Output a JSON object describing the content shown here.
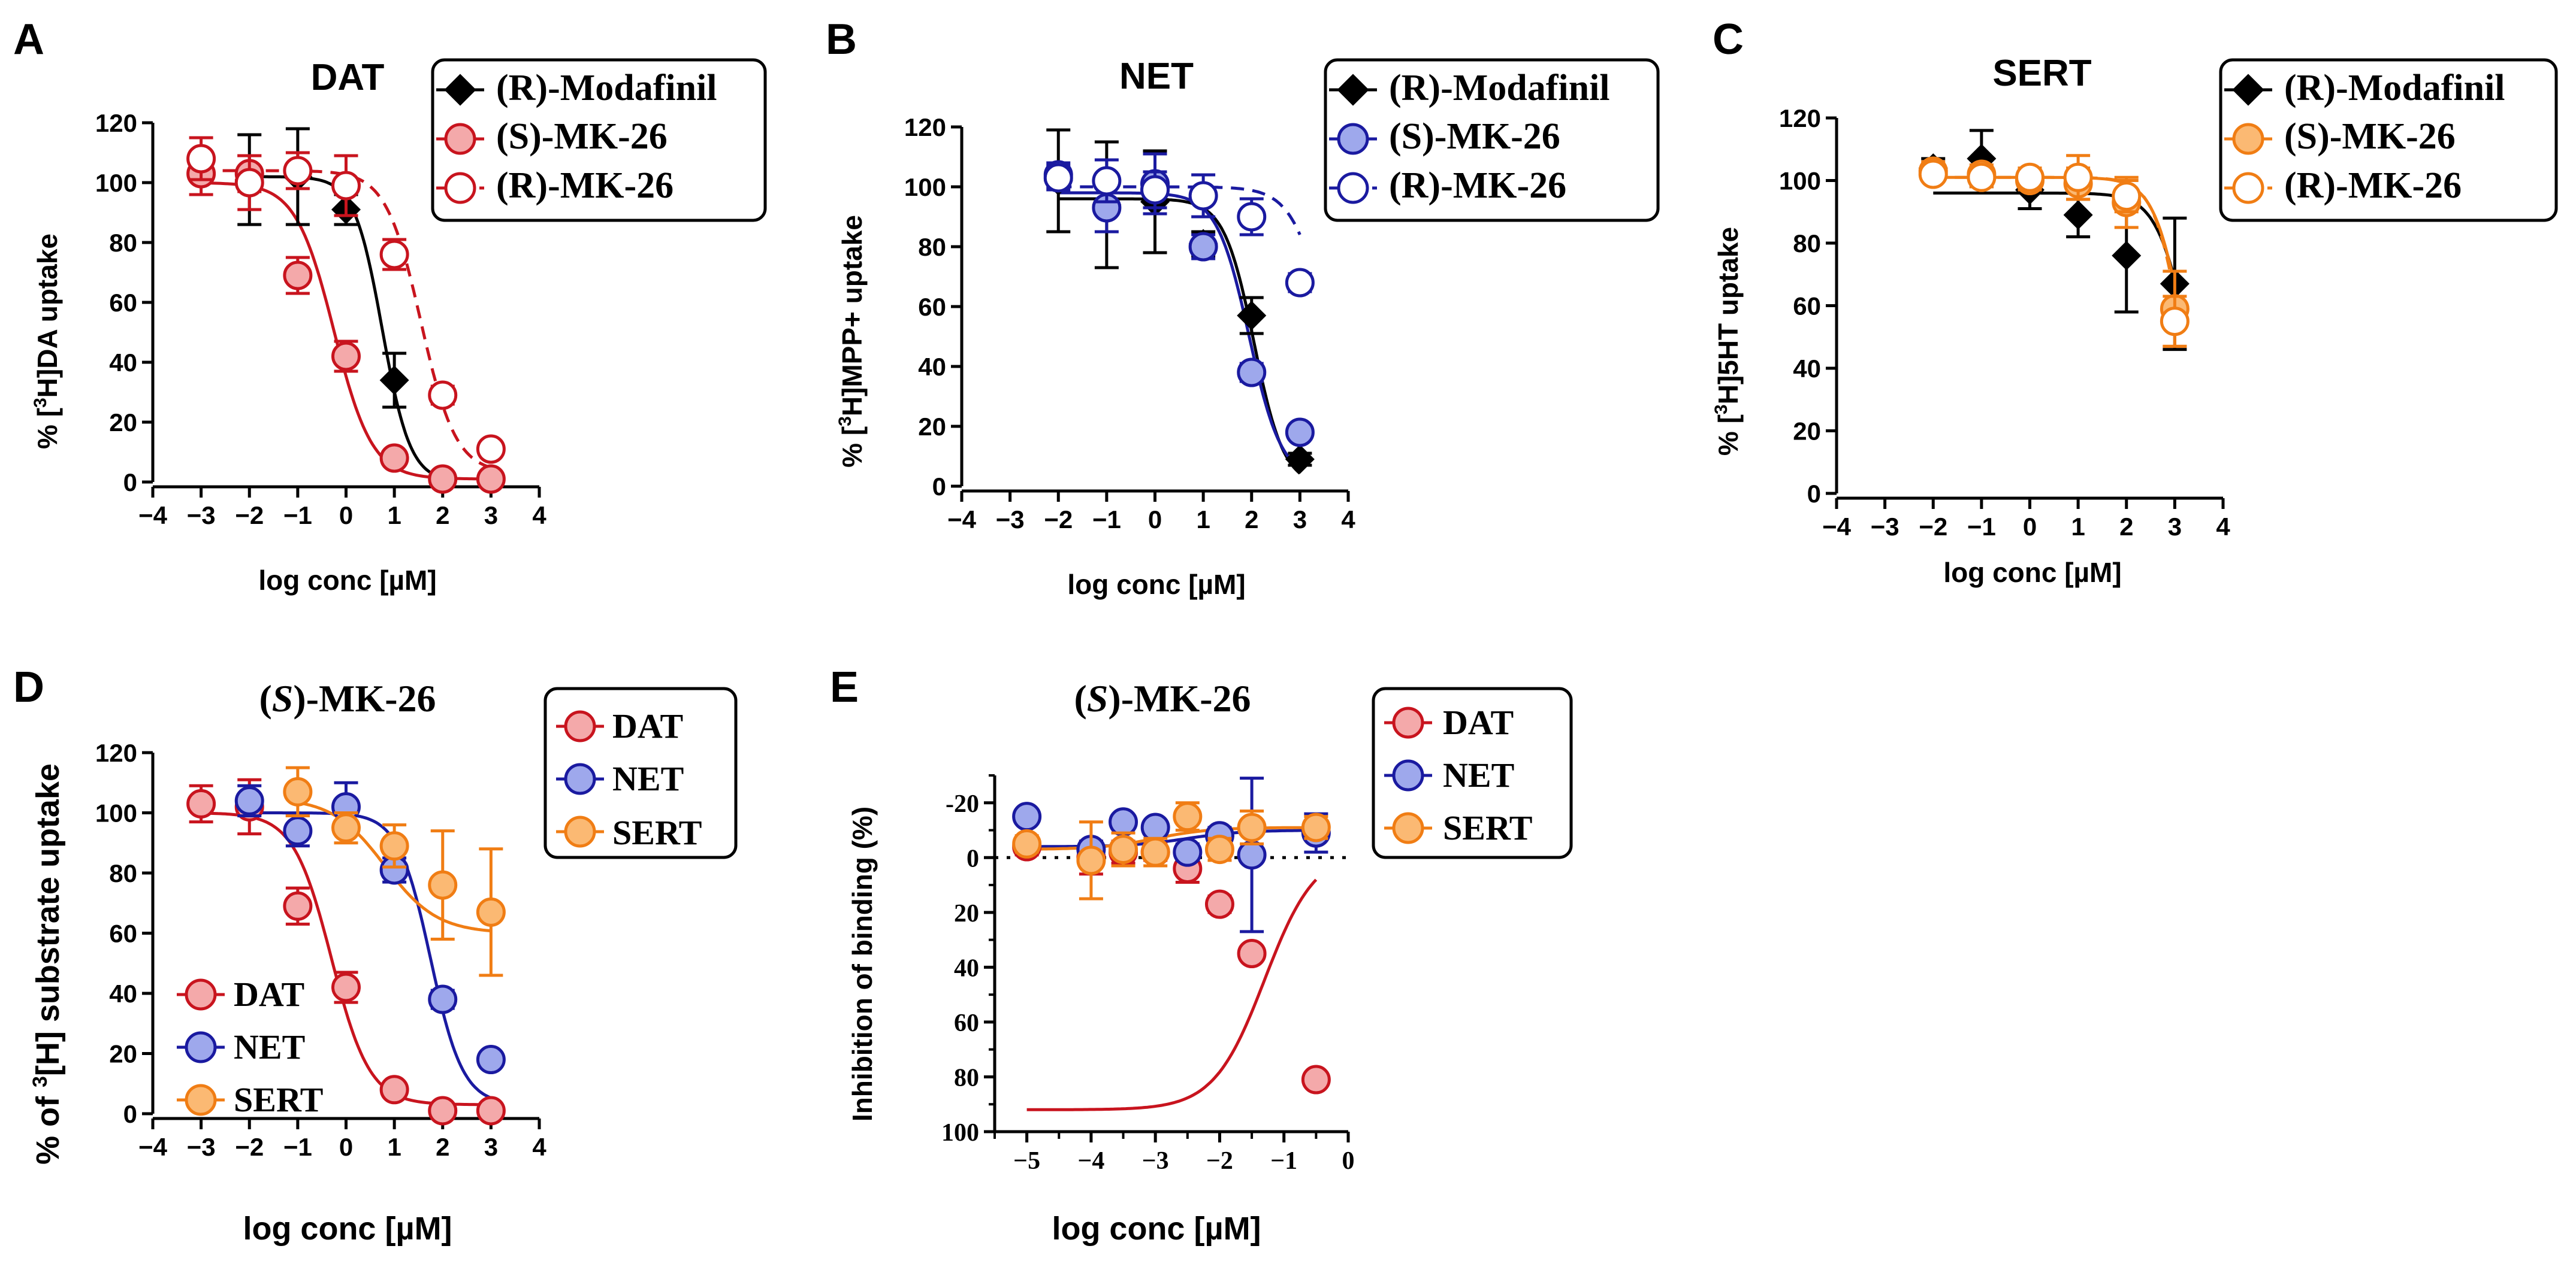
{
  "colors": {
    "black": "#000000",
    "red_line": "#c8141e",
    "red_fill": "#f4a9aa",
    "blue_line": "#1a1aa0",
    "blue_fill": "#9ea8ec",
    "orange_line": "#f07d14",
    "orange_fill": "#fbb973"
  },
  "chart_data": [
    {
      "panel": "A",
      "type": "scatter",
      "title": "DAT",
      "ylabel_prefix": "% [",
      "ylabel_sup": "3",
      "ylabel_suffix": "H]DA uptake",
      "xlabel": "log conc [µM]",
      "xlim": [
        -4,
        4
      ],
      "ylim": [
        0,
        120
      ],
      "xticks": [
        "−4",
        "−3",
        "−2",
        "−1",
        "0",
        "1",
        "2",
        "3",
        "4"
      ],
      "yticks": [
        "0",
        "20",
        "40",
        "60",
        "80",
        "100",
        "120"
      ],
      "legend_placement": "top-right",
      "legend": [
        "(R)-Modafinil",
        "(S)-MK-26",
        "(R)-MK-26"
      ],
      "series": [
        {
          "name": "(R)-Modafinil",
          "marker": "diamond",
          "x": [
            -2,
            -1,
            0,
            1,
            2
          ],
          "y": [
            101,
            102,
            91,
            34,
            1
          ],
          "err": [
            15,
            16,
            5,
            9,
            2
          ],
          "fit": {
            "bottom": 0,
            "top": 102,
            "logec50": 0.75,
            "hill": 1.5
          }
        },
        {
          "name": "(S)-MK-26",
          "marker": "circle",
          "x": [
            -3,
            -2,
            -1,
            0,
            1,
            2,
            3
          ],
          "y": [
            103,
            103,
            69,
            42,
            8,
            1,
            1
          ],
          "err": [
            7,
            6,
            6,
            5,
            2,
            1,
            1
          ],
          "fit": {
            "bottom": 1,
            "top": 100,
            "logec50": -0.25,
            "hill": 1.1
          }
        },
        {
          "name": "(R)-MK-26",
          "marker": "circle-open",
          "x": [
            -3,
            -2,
            -1,
            0,
            1,
            2,
            3
          ],
          "y": [
            108,
            100,
            104,
            99,
            76,
            29,
            11
          ],
          "err": [
            7,
            9,
            6,
            10,
            5,
            3,
            2
          ],
          "fit": {
            "bottom": 3,
            "top": 104,
            "logec50": 1.55,
            "hill": 1.2
          }
        }
      ]
    },
    {
      "panel": "B",
      "type": "scatter",
      "title": "NET",
      "ylabel_prefix": "% [",
      "ylabel_sup": "3",
      "ylabel_suffix": "H]MPP+ uptake",
      "xlabel": "log conc [µM]",
      "xlim": [
        -4,
        4
      ],
      "ylim": [
        0,
        120
      ],
      "xticks": [
        "−4",
        "−3",
        "−2",
        "−1",
        "0",
        "1",
        "2",
        "3",
        "4"
      ],
      "yticks": [
        "0",
        "20",
        "40",
        "60",
        "80",
        "100",
        "120"
      ],
      "legend_placement": "top-right",
      "legend": [
        "(R)-Modafinil",
        "(S)-MK-26",
        "(R)-MK-26"
      ],
      "series": [
        {
          "name": "(R)-Modafinil",
          "marker": "diamond",
          "x": [
            -2,
            -1,
            0,
            1,
            2,
            3
          ],
          "y": [
            102,
            94,
            95,
            81,
            57,
            9
          ],
          "err": [
            17,
            21,
            17,
            4,
            6,
            2
          ],
          "fit": {
            "bottom": 0,
            "top": 96,
            "logec50": 2.05,
            "hill": 1.4
          }
        },
        {
          "name": "(S)-MK-26",
          "marker": "circle",
          "x": [
            -2,
            -1,
            0,
            1,
            2,
            3
          ],
          "y": [
            104,
            93,
            101,
            80,
            38,
            18
          ],
          "err": [
            4,
            8,
            10,
            4,
            3,
            2
          ],
          "fit": {
            "bottom": 2,
            "top": 98,
            "logec50": 1.95,
            "hill": 1.3
          }
        },
        {
          "name": "(R)-MK-26",
          "marker": "circle-open",
          "x": [
            -2,
            -1,
            0,
            1,
            2,
            3
          ],
          "y": [
            103,
            102,
            99,
            97,
            90,
            68
          ],
          "err": [
            4,
            7,
            6,
            7,
            6,
            3
          ],
          "fit": {
            "bottom": 0,
            "top": 100,
            "logec50": 3.6,
            "hill": 1.2
          }
        }
      ]
    },
    {
      "panel": "C",
      "type": "scatter",
      "title": "SERT",
      "ylabel_prefix": "% [",
      "ylabel_sup": "3",
      "ylabel_suffix": "H]5HT uptake",
      "xlabel": "log conc [µM]",
      "xlim": [
        -4,
        4
      ],
      "ylim": [
        0,
        120
      ],
      "xticks": [
        "−4",
        "−3",
        "−2",
        "−1",
        "0",
        "1",
        "2",
        "3",
        "4"
      ],
      "yticks": [
        "0",
        "20",
        "40",
        "60",
        "80",
        "100",
        "120"
      ],
      "legend_placement": "top-right",
      "legend": [
        "(R)-Modafinil",
        "(S)-MK-26",
        "(R)-MK-26"
      ],
      "series": [
        {
          "name": "(R)-Modafinil",
          "marker": "diamond",
          "x": [
            -2,
            -1,
            0,
            1,
            2,
            3
          ],
          "y": [
            104,
            107,
            97,
            89,
            76,
            67
          ],
          "err": [
            3,
            9,
            6,
            7,
            18,
            21
          ],
          "fit": {
            "bottom": 0,
            "top": 96,
            "logec50": 3.3,
            "hill": 1.3
          }
        },
        {
          "name": "(S)-MK-26",
          "marker": "circle",
          "x": [
            -2,
            -1,
            0,
            1,
            2,
            3
          ],
          "y": [
            103,
            102,
            100,
            99,
            93,
            59
          ],
          "err": [
            3,
            3,
            3,
            5,
            8,
            12
          ],
          "fit": {
            "bottom": 0,
            "top": 101,
            "logec50": 3.2,
            "hill": 1.4
          }
        },
        {
          "name": "(R)-MK-26",
          "marker": "circle-open",
          "x": [
            -2,
            -1,
            0,
            1,
            2,
            3
          ],
          "y": [
            102,
            101,
            101,
            101,
            95,
            55
          ],
          "err": [
            2,
            3,
            3,
            7,
            5,
            8
          ],
          "fit": {
            "bottom": 0,
            "top": 101,
            "logec50": 3.15,
            "hill": 1.5
          }
        }
      ]
    },
    {
      "panel": "D",
      "type": "scatter",
      "title_prefix": "(",
      "title_italic": "S",
      "title_suffix": ")-MK-26",
      "ylabel_prefix": "% of ",
      "ylabel_sup": "3",
      "ylabel_suffix": "[H] substrate uptake",
      "xlabel": "log conc [µM]",
      "xlim": [
        -4,
        4
      ],
      "ylim": [
        0,
        120
      ],
      "xticks": [
        "−4",
        "−3",
        "−2",
        "−1",
        "0",
        "1",
        "2",
        "3",
        "4"
      ],
      "yticks": [
        "0",
        "20",
        "40",
        "60",
        "80",
        "100",
        "120"
      ],
      "legend_placement": "top-right",
      "legend": [
        "DAT",
        "NET",
        "SERT"
      ],
      "inset_legend_placement": "bottom-left",
      "inset_legend": [
        "DAT",
        "NET",
        "SERT"
      ],
      "series": [
        {
          "name": "DAT",
          "marker": "circle",
          "x": [
            -3,
            -2,
            -1,
            0,
            1,
            2,
            3
          ],
          "y": [
            103,
            102,
            69,
            42,
            8,
            1,
            1
          ],
          "err": [
            6,
            9,
            6,
            5,
            2,
            1,
            1
          ],
          "fit": {
            "bottom": 3,
            "top": 100,
            "logec50": -0.3,
            "hill": 1.1
          }
        },
        {
          "name": "NET",
          "marker": "circle",
          "x": [
            -2,
            -1,
            0,
            1,
            2,
            3
          ],
          "y": [
            104,
            94,
            102,
            81,
            38,
            18
          ],
          "err": [
            5,
            5,
            8,
            4,
            3,
            2
          ],
          "fit": {
            "bottom": 3,
            "top": 100,
            "logec50": 1.75,
            "hill": 1.3
          }
        },
        {
          "name": "SERT",
          "marker": "circle",
          "x": [
            -1,
            0,
            1,
            2,
            3
          ],
          "y": [
            107,
            95,
            89,
            76,
            67
          ],
          "err": [
            8,
            5,
            7,
            18,
            21
          ],
          "fit": {
            "bottom": 60,
            "top": 105,
            "logec50": 0.8,
            "hill": 0.8,
            "xmin": -1,
            "xmax": 3
          }
        }
      ]
    },
    {
      "panel": "E",
      "type": "scatter",
      "title_prefix": "(",
      "title_italic": "S",
      "title_suffix": ")-MK-26",
      "ylabel": "Inhibition of binding (%)",
      "xlabel": "log conc [µM]",
      "xlim": [
        -5.5,
        0
      ],
      "ylim_inverted": [
        100,
        -30
      ],
      "xticks": [
        "−5",
        "−4",
        "−3",
        "−2",
        "−1",
        "0"
      ],
      "yticks": [
        "-20",
        "0",
        "20",
        "40",
        "60",
        "80",
        "100"
      ],
      "zero_line": "dotted",
      "legend_placement": "top-right",
      "legend": [
        "DAT",
        "NET",
        "SERT"
      ],
      "series": [
        {
          "name": "DAT",
          "marker": "circle",
          "x": [
            -5,
            -4,
            -3.5,
            -3,
            -2.5,
            -2,
            -1.5,
            -0.5
          ],
          "y": [
            -4,
            0,
            -2,
            -2,
            4,
            17,
            35,
            81
          ],
          "err": [
            3,
            6,
            4,
            3,
            5,
            3,
            2,
            2
          ],
          "fit": {
            "bottom": -3,
            "top": 92,
            "logec50": -1.3,
            "hill": 1.1
          }
        },
        {
          "name": "NET",
          "marker": "circle",
          "x": [
            -5,
            -4,
            -3.5,
            -3,
            -2.5,
            -2,
            -1.5,
            -0.5
          ],
          "y": [
            -15,
            -3,
            -13,
            -11,
            -2,
            -8,
            -1,
            -9
          ],
          "err": [
            2,
            3,
            2,
            2,
            3,
            3,
            28,
            7
          ],
          "fit": {
            "bottom": -10,
            "top": -4,
            "logec50": -2.5,
            "hill": 1,
            "flat": true
          }
        },
        {
          "name": "SERT",
          "marker": "circle",
          "x": [
            -5,
            -4,
            -3.5,
            -3,
            -2.5,
            -2,
            -1.5,
            -0.5
          ],
          "y": [
            -5,
            1,
            -3,
            -2,
            -15,
            -3,
            -11,
            -11
          ],
          "err": [
            3,
            14,
            6,
            5,
            5,
            4,
            6,
            4
          ],
          "fit": {
            "bottom": -11,
            "top": -3,
            "logec50": -3,
            "hill": 1,
            "flat": true
          }
        }
      ]
    }
  ]
}
